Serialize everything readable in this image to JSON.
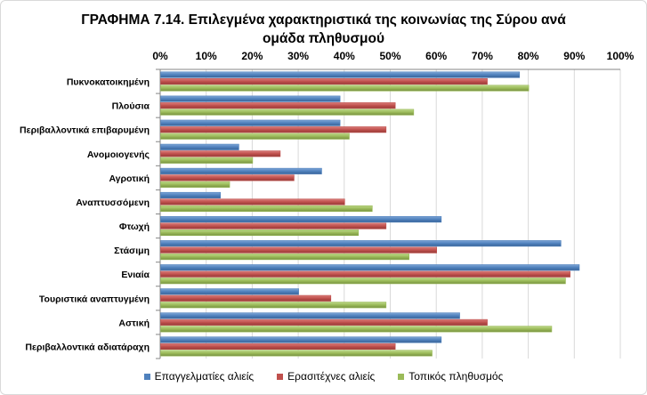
{
  "chart_data": {
    "type": "bar",
    "orientation": "horizontal",
    "title": "ΓΡΑΦΗΜΑ 7.14. Επιλεγμένα χαρακτηριστικά της κοινωνίας της Σύρου ανά ομάδα πληθυσμού",
    "title_lines": [
      "ΓΡΑΦΗΜΑ 7.14. Επιλεγμένα χαρακτηριστικά της κοινωνίας της Σύρου ανά",
      "ομάδα πληθυσμού"
    ],
    "x_ticks": [
      "0%",
      "10%",
      "20%",
      "30%",
      "40%",
      "50%",
      "60%",
      "70%",
      "80%",
      "90%",
      "100%"
    ],
    "xlim": [
      0,
      100
    ],
    "axis_position": "top",
    "grid": true,
    "legend_position": "bottom",
    "categories": [
      "Πυκνοκατοικημένη",
      "Πλούσια",
      "Περιβαλλοντικά επιβαρυμένη",
      "Ανομοιογενής",
      "Αγροτική",
      "Αναπτυσσόμενη",
      "Φτωχή",
      "Στάσιμη",
      "Ενιαία",
      "Τουριστικά αναπτυγμένη",
      "Αστική",
      "Περιβαλλοντικά αδιατάραχη"
    ],
    "series": [
      {
        "name": "Επαγγελματίες αλιείς",
        "color": "#4F81BD",
        "values": [
          78,
          39,
          39,
          17,
          35,
          13,
          61,
          87,
          91,
          30,
          65,
          61
        ]
      },
      {
        "name": "Ερασιτέχνες αλιείς",
        "color": "#C0504D",
        "values": [
          71,
          51,
          49,
          26,
          29,
          40,
          49,
          60,
          89,
          37,
          71,
          51
        ]
      },
      {
        "name": "Τοπικός πληθυσμός",
        "color": "#9BBB59",
        "values": [
          80,
          55,
          41,
          20,
          15,
          46,
          43,
          54,
          88,
          49,
          85,
          59
        ]
      }
    ]
  }
}
